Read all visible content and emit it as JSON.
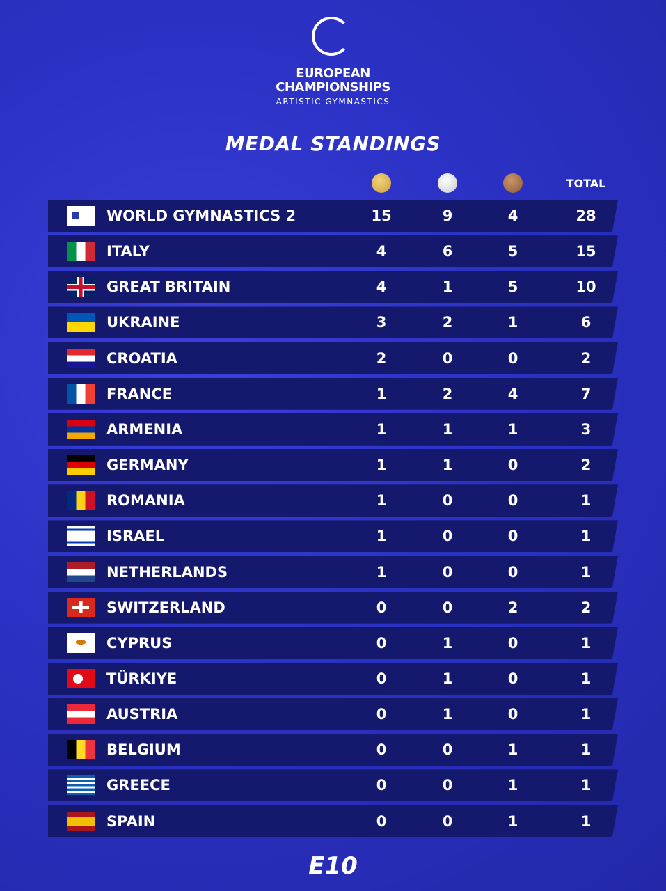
{
  "header": {
    "logo_line1": "EUROPEAN",
    "logo_line2": "CHAMPIONSHIPS",
    "logo_line3": "ARTISTIC GYMNASTICS",
    "title": "MEDAL STANDINGS"
  },
  "table": {
    "total_header": "TOTAL",
    "rows": [
      [
        "WORLD GYMNASTICS 2",
        15,
        9,
        4,
        28
      ],
      [
        "ITALY",
        4,
        6,
        5,
        15
      ],
      [
        "GREAT BRITAIN",
        4,
        1,
        5,
        10
      ],
      [
        "UKRAINE",
        3,
        2,
        1,
        6
      ],
      [
        "CROATIA",
        2,
        0,
        0,
        2
      ],
      [
        "FRANCE",
        1,
        2,
        4,
        7
      ],
      [
        "ARMENIA",
        1,
        1,
        1,
        3
      ],
      [
        "GERMANY",
        1,
        1,
        0,
        2
      ],
      [
        "ROMANIA",
        1,
        0,
        0,
        1
      ],
      [
        "ISRAEL",
        1,
        0,
        0,
        1
      ],
      [
        "NETHERLANDS",
        1,
        0,
        0,
        1
      ],
      [
        "SWITZERLAND",
        0,
        0,
        2,
        2
      ],
      [
        "CYPRUS",
        0,
        1,
        0,
        1
      ],
      [
        "TÜRKIYE",
        0,
        1,
        0,
        1
      ],
      [
        "AUSTRIA",
        0,
        1,
        0,
        1
      ],
      [
        "BELGIUM",
        0,
        0,
        1,
        1
      ],
      [
        "GREECE",
        0,
        0,
        1,
        1
      ],
      [
        "SPAIN",
        0,
        0,
        1,
        1
      ]
    ]
  },
  "footer": {
    "brand": "E10"
  }
}
